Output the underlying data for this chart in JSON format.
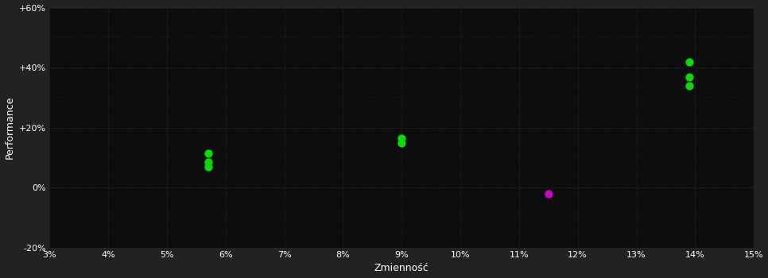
{
  "background_color": "#222222",
  "plot_bg_color": "#0d0d0d",
  "grid_color": "#3a3a3a",
  "text_color": "#ffffff",
  "xlabel": "Zmienność",
  "ylabel": "Performance",
  "xlim": [
    0.03,
    0.15
  ],
  "ylim": [
    -0.2,
    0.6
  ],
  "ytick_labels": [
    "-20%",
    "0%",
    "+20%",
    "+40%",
    "+60%"
  ],
  "ytick_values": [
    -0.2,
    0.0,
    0.2,
    0.4,
    0.6
  ],
  "xtick_labels": [
    "3%",
    "4%",
    "5%",
    "6%",
    "7%",
    "8%",
    "9%",
    "10%",
    "11%",
    "12%",
    "13%",
    "14%",
    "15%"
  ],
  "xtick_values": [
    0.03,
    0.04,
    0.05,
    0.06,
    0.07,
    0.08,
    0.09,
    0.1,
    0.11,
    0.12,
    0.13,
    0.14,
    0.15
  ],
  "green_points": [
    [
      0.057,
      0.115
    ],
    [
      0.057,
      0.085
    ],
    [
      0.057,
      0.068
    ],
    [
      0.09,
      0.165
    ],
    [
      0.09,
      0.148
    ],
    [
      0.139,
      0.42
    ],
    [
      0.139,
      0.368
    ],
    [
      0.139,
      0.34
    ]
  ],
  "magenta_points": [
    [
      0.115,
      -0.022
    ]
  ],
  "green_color": "#00dd00",
  "magenta_color": "#cc00cc",
  "marker_size": 55
}
